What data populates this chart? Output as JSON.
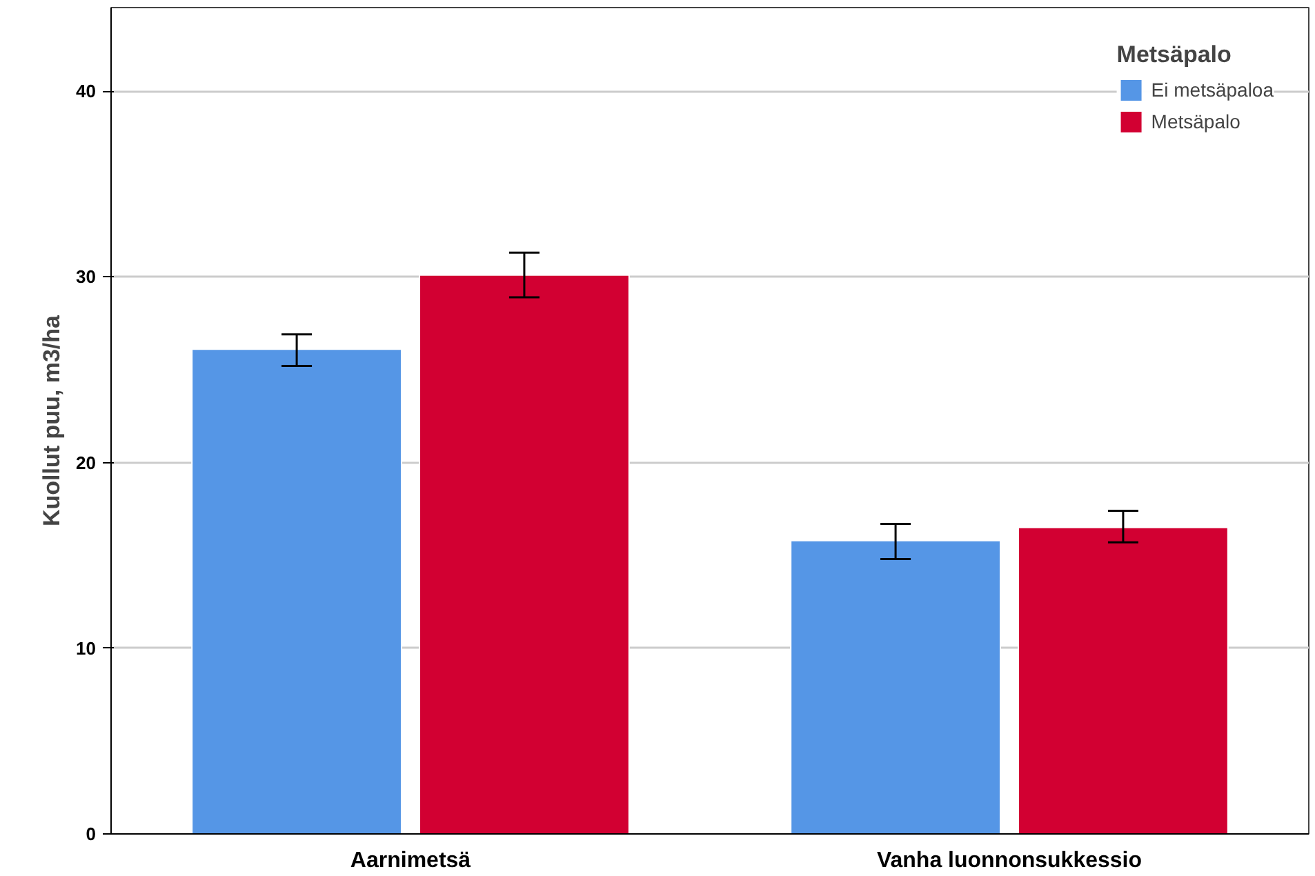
{
  "chart_data": {
    "type": "bar",
    "ylabel": "Kuollut puu, m3/ha",
    "legend_title": "Metsäpalo",
    "categories": [
      "Aarnimetsä",
      "Vanha luonnonsukkessio"
    ],
    "series": [
      {
        "name": "Ei metsäpaloa",
        "color": "#5596e6",
        "values": [
          26.1,
          15.8
        ],
        "errors": [
          [
            25.2,
            26.9
          ],
          [
            14.8,
            16.7
          ]
        ]
      },
      {
        "name": "Metsäpalo",
        "color": "#d20032",
        "values": [
          30.1,
          16.5
        ],
        "errors": [
          [
            28.9,
            31.3
          ],
          [
            15.7,
            17.4
          ]
        ]
      }
    ],
    "ylim": [
      0,
      44.5
    ],
    "yticks": [
      0,
      10,
      20,
      30,
      40
    ],
    "grid": "y",
    "legend": "top right"
  }
}
